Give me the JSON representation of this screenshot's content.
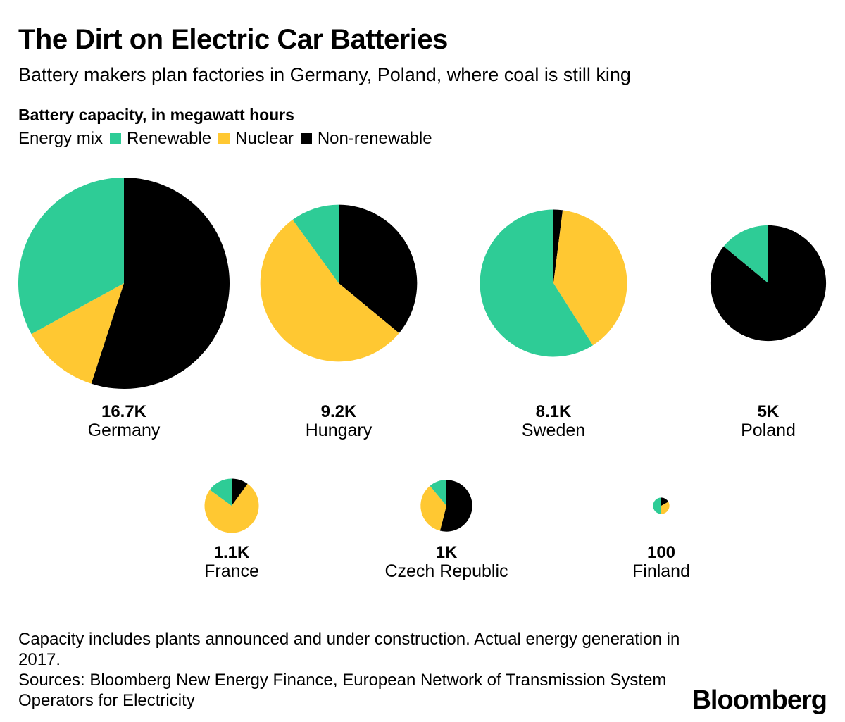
{
  "title": "The Dirt on Electric Car Batteries",
  "subtitle": "Battery makers plan factories in Germany, Poland, where coal is still king",
  "measure_label": "Battery capacity, in megawatt hours",
  "legend": {
    "lead": "Energy mix",
    "items": [
      {
        "label": "Renewable",
        "color": "#2ecc96"
      },
      {
        "label": "Nuclear",
        "color": "#ffc832"
      },
      {
        "label": "Non-renewable",
        "color": "#000000"
      }
    ]
  },
  "chart_data": {
    "type": "pie",
    "size_encodes": "Battery capacity, in megawatt hours",
    "slice_order": [
      "Non-renewable",
      "Nuclear",
      "Renewable"
    ],
    "colors": {
      "Renewable": "#2ecc96",
      "Nuclear": "#ffc832",
      "Non-renewable": "#000000"
    },
    "countries": [
      {
        "name": "Germany",
        "capacity_label": "16.7K",
        "capacity_mwh": 16700,
        "mix": {
          "Non-renewable": 0.55,
          "Nuclear": 0.12,
          "Renewable": 0.33
        }
      },
      {
        "name": "Hungary",
        "capacity_label": "9.2K",
        "capacity_mwh": 9200,
        "mix": {
          "Non-renewable": 0.36,
          "Nuclear": 0.54,
          "Renewable": 0.1
        }
      },
      {
        "name": "Sweden",
        "capacity_label": "8.1K",
        "capacity_mwh": 8100,
        "mix": {
          "Non-renewable": 0.02,
          "Nuclear": 0.39,
          "Renewable": 0.59
        }
      },
      {
        "name": "Poland",
        "capacity_label": "5K",
        "capacity_mwh": 5000,
        "mix": {
          "Non-renewable": 0.86,
          "Nuclear": 0.0,
          "Renewable": 0.14
        }
      },
      {
        "name": "France",
        "capacity_label": "1.1K",
        "capacity_mwh": 1100,
        "mix": {
          "Non-renewable": 0.1,
          "Nuclear": 0.75,
          "Renewable": 0.15
        }
      },
      {
        "name": "Czech Republic",
        "capacity_label": "1K",
        "capacity_mwh": 1000,
        "mix": {
          "Non-renewable": 0.54,
          "Nuclear": 0.35,
          "Renewable": 0.11
        }
      },
      {
        "name": "Finland",
        "capacity_label": "100",
        "capacity_mwh": 100,
        "mix": {
          "Non-renewable": 0.17,
          "Nuclear": 0.33,
          "Renewable": 0.5
        }
      }
    ]
  },
  "footnote": {
    "line1": "Capacity includes plants announced and under construction. Actual energy generation in 2017.",
    "line2": "Sources: Bloomberg New Energy Finance, European Network of Transmission System Operators for Electricity"
  },
  "logo": "Bloomberg"
}
